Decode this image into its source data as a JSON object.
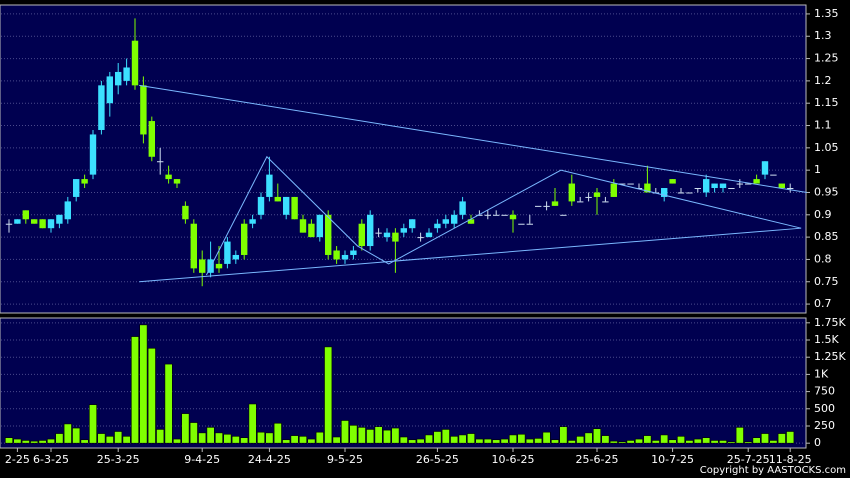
{
  "chart_data": [
    {
      "type": "candlestick",
      "open": [
        0.88,
        0.88,
        0.91,
        0.89,
        0.89,
        0.87,
        0.88,
        0.89,
        0.94,
        0.98,
        0.99,
        1.09,
        1.15,
        1.19,
        1.2,
        1.29,
        1.19,
        1.11,
        1.02,
        0.99,
        0.98,
        0.92,
        0.88,
        0.8,
        0.77,
        0.79,
        0.79,
        0.8,
        0.88,
        0.88,
        0.9,
        0.94,
        0.94,
        0.9,
        0.94,
        0.89,
        0.88,
        0.85,
        0.9,
        0.82,
        0.8,
        0.81,
        0.88,
        0.83,
        0.86,
        0.85,
        0.86,
        0.86,
        0.87,
        0.85,
        0.85,
        0.87,
        0.88,
        0.88,
        0.9,
        0.89,
        0.9,
        0.9,
        0.9,
        0.9,
        0.9,
        0.88,
        0.88,
        0.92,
        0.92,
        0.93,
        0.9,
        0.97,
        0.93,
        0.94,
        0.95,
        0.93,
        0.97,
        0.97,
        0.97,
        0.96,
        0.97,
        0.95,
        0.94,
        0.98,
        0.95,
        0.95,
        0.96,
        0.95,
        0.96,
        0.96,
        0.96,
        0.97,
        0.97,
        0.98,
        0.99,
        0.99,
        0.97,
        0.96
      ],
      "high": [
        0.89,
        0.89,
        0.91,
        0.89,
        0.89,
        0.89,
        0.9,
        0.94,
        0.98,
        0.99,
        1.09,
        1.2,
        1.22,
        1.24,
        1.25,
        1.34,
        1.21,
        1.12,
        1.05,
        1.01,
        0.98,
        0.93,
        0.89,
        0.82,
        0.84,
        0.83,
        0.85,
        0.82,
        0.89,
        0.9,
        0.95,
        1.03,
        0.97,
        0.94,
        0.94,
        0.9,
        0.89,
        0.9,
        0.91,
        0.83,
        0.82,
        0.83,
        0.89,
        0.91,
        0.87,
        0.87,
        0.87,
        0.88,
        0.89,
        0.86,
        0.87,
        0.89,
        0.9,
        0.91,
        0.94,
        0.9,
        0.91,
        0.91,
        0.91,
        0.9,
        0.91,
        0.88,
        0.9,
        0.92,
        0.93,
        0.96,
        0.9,
        0.99,
        0.94,
        0.95,
        0.96,
        0.94,
        0.98,
        0.97,
        0.97,
        0.97,
        1.01,
        0.96,
        0.96,
        0.98,
        0.96,
        0.95,
        0.96,
        0.99,
        0.97,
        0.97,
        0.96,
        0.98,
        0.97,
        0.99,
        1.02,
        0.99,
        0.97,
        0.97
      ],
      "low": [
        0.86,
        0.88,
        0.88,
        0.88,
        0.87,
        0.86,
        0.87,
        0.88,
        0.93,
        0.96,
        0.98,
        1.08,
        1.12,
        1.17,
        1.19,
        1.18,
        1.06,
        1.02,
        0.99,
        0.97,
        0.96,
        0.88,
        0.77,
        0.74,
        0.76,
        0.77,
        0.78,
        0.79,
        0.8,
        0.87,
        0.89,
        0.93,
        0.93,
        0.89,
        0.89,
        0.86,
        0.85,
        0.84,
        0.8,
        0.79,
        0.79,
        0.8,
        0.82,
        0.82,
        0.85,
        0.84,
        0.77,
        0.85,
        0.86,
        0.84,
        0.85,
        0.86,
        0.87,
        0.87,
        0.89,
        0.88,
        0.9,
        0.89,
        0.9,
        0.9,
        0.86,
        0.88,
        0.88,
        0.92,
        0.91,
        0.92,
        0.9,
        0.92,
        0.93,
        0.93,
        0.9,
        0.93,
        0.94,
        0.97,
        0.97,
        0.96,
        0.95,
        0.95,
        0.93,
        0.97,
        0.95,
        0.95,
        0.95,
        0.94,
        0.95,
        0.95,
        0.96,
        0.96,
        0.97,
        0.97,
        0.98,
        0.99,
        0.96,
        0.95
      ],
      "close": [
        0.88,
        0.89,
        0.89,
        0.88,
        0.87,
        0.89,
        0.9,
        0.93,
        0.98,
        0.97,
        1.08,
        1.19,
        1.21,
        1.22,
        1.23,
        1.19,
        1.08,
        1.03,
        1.02,
        0.98,
        0.97,
        0.89,
        0.78,
        0.77,
        0.8,
        0.78,
        0.84,
        0.81,
        0.81,
        0.89,
        0.94,
        0.99,
        0.93,
        0.94,
        0.89,
        0.86,
        0.85,
        0.9,
        0.81,
        0.8,
        0.81,
        0.82,
        0.83,
        0.9,
        0.86,
        0.86,
        0.84,
        0.87,
        0.89,
        0.85,
        0.86,
        0.88,
        0.89,
        0.9,
        0.93,
        0.88,
        0.9,
        0.9,
        0.9,
        0.9,
        0.89,
        0.88,
        0.88,
        0.92,
        0.92,
        0.92,
        0.9,
        0.93,
        0.93,
        0.94,
        0.94,
        0.93,
        0.94,
        0.97,
        0.97,
        0.96,
        0.95,
        0.95,
        0.96,
        0.97,
        0.95,
        0.95,
        0.96,
        0.98,
        0.97,
        0.97,
        0.96,
        0.97,
        0.97,
        0.97,
        1.02,
        0.99,
        0.96,
        0.96
      ],
      "up_color": "#3ce0ff",
      "down_color": "#80ff00",
      "flat_color": "#d0e0f0",
      "ylim": [
        0.68,
        1.37
      ],
      "yticks": [
        0.7,
        0.75,
        0.8,
        0.85,
        0.9,
        0.95,
        1,
        1.05,
        1.1,
        1.15,
        1.2,
        1.25,
        1.3,
        1.35
      ],
      "grid": true,
      "trend_line_color": "#7ab8ff",
      "trend_lines": [
        {
          "x": [
            15.5,
            95
          ],
          "y": [
            1.19,
            0.95
          ]
        },
        {
          "x": [
            15.5,
            94.3
          ],
          "y": [
            0.75,
            0.87
          ]
        },
        {
          "x": [
            23.5,
            30.7,
            41.5,
            45.2,
            65.7,
            94.3
          ],
          "y": [
            0.765,
            1.03,
            0.83,
            0.79,
            1.0,
            0.87
          ]
        }
      ]
    },
    {
      "type": "bar",
      "categories": [
        null,
        "2-25",
        null,
        null,
        null,
        "6-3-25",
        null,
        null,
        null,
        null,
        null,
        null,
        null,
        "25-3-25",
        null,
        null,
        null,
        null,
        null,
        null,
        null,
        null,
        null,
        "9-4-25",
        null,
        null,
        null,
        null,
        null,
        null,
        null,
        "24-4-25",
        null,
        null,
        null,
        null,
        null,
        null,
        null,
        null,
        "9-5-25",
        null,
        null,
        null,
        null,
        null,
        null,
        null,
        null,
        null,
        null,
        "26-5-25",
        null,
        null,
        null,
        null,
        null,
        null,
        null,
        null,
        "10-6-25",
        null,
        null,
        null,
        null,
        null,
        null,
        null,
        null,
        null,
        "25-6-25",
        null,
        null,
        null,
        null,
        null,
        null,
        null,
        null,
        "10-7-25",
        null,
        null,
        null,
        null,
        null,
        null,
        null,
        null,
        "25-7-25",
        null,
        null,
        null,
        null,
        "11-8-25"
      ],
      "values": [
        80,
        60,
        40,
        30,
        40,
        60,
        140,
        280,
        220,
        50,
        560,
        140,
        100,
        170,
        100,
        1550,
        1720,
        1380,
        200,
        1150,
        60,
        430,
        300,
        150,
        230,
        150,
        130,
        100,
        80,
        570,
        160,
        150,
        290,
        50,
        110,
        100,
        60,
        160,
        1400,
        90,
        330,
        260,
        230,
        200,
        240,
        190,
        220,
        90,
        50,
        60,
        120,
        170,
        200,
        100,
        120,
        140,
        60,
        60,
        50,
        60,
        120,
        130,
        60,
        70,
        160,
        50,
        240,
        40,
        100,
        150,
        210,
        110,
        30,
        20,
        40,
        60,
        110,
        40,
        120,
        50,
        100,
        40,
        60,
        80,
        40,
        40,
        20,
        230,
        20,
        80,
        140,
        40,
        140,
        170
      ],
      "color": "#80ff00",
      "ylim": [
        -70,
        1820
      ],
      "yticks": [
        0,
        250,
        500,
        750,
        {
          "value": 1000,
          "label": "1K"
        },
        {
          "value": 1250,
          "label": "1.25K"
        },
        {
          "value": 1500,
          "label": "1.5K"
        },
        {
          "value": 1750,
          "label": "1.75K"
        }
      ],
      "grid": true,
      "copyright": "Copyright by AASTOCKS.com"
    }
  ]
}
